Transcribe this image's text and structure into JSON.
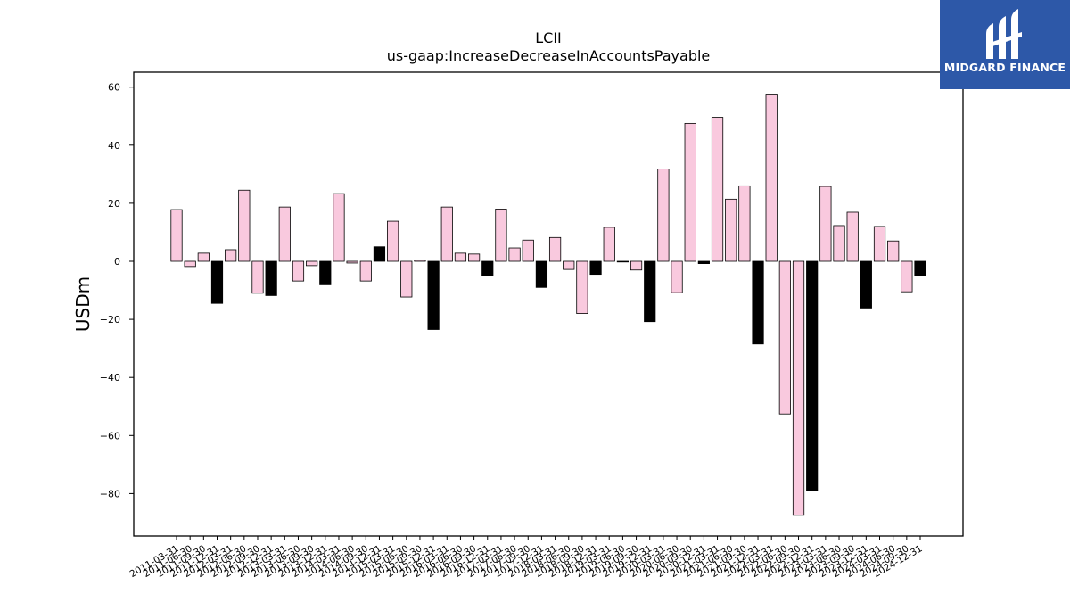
{
  "logo": {
    "text": "MIDGARD FINANCE"
  },
  "chart_data": {
    "type": "bar",
    "title": "LCII",
    "subtitle": "us-gaap:IncreaseDecreaseInAccountsPayable",
    "xlabel": "",
    "ylabel": "USDm",
    "ylim": [
      -95,
      65
    ],
    "yticks": [
      60,
      40,
      20,
      0,
      -20,
      -40,
      -60,
      -80
    ],
    "ytick_labels": [
      "60",
      "40",
      "20",
      "0",
      "−20",
      "−40",
      "−60",
      "−80"
    ],
    "grid": false,
    "colors": {
      "positive_quarter": "#f9c9de",
      "q4": "#000000",
      "edge": "#000000"
    },
    "categories": [
      "2011-03-31",
      "2011-06-30",
      "2011-09-30",
      "2011-12-31",
      "2012-03-31",
      "2012-06-30",
      "2012-09-30",
      "2012-12-31",
      "2013-03-31",
      "2013-06-30",
      "2013-09-30",
      "2013-12-31",
      "2014-03-31",
      "2014-06-30",
      "2014-09-30",
      "2014-12-31",
      "2015-03-31",
      "2015-06-30",
      "2015-09-30",
      "2015-12-31",
      "2016-03-31",
      "2016-06-30",
      "2016-09-30",
      "2016-12-31",
      "2017-03-31",
      "2017-06-30",
      "2017-09-30",
      "2017-12-31",
      "2018-03-31",
      "2018-06-30",
      "2018-09-30",
      "2018-12-31",
      "2019-03-31",
      "2019-06-30",
      "2019-09-30",
      "2019-12-31",
      "2020-03-31",
      "2020-06-30",
      "2020-09-30",
      "2020-12-31",
      "2021-03-31",
      "2021-06-30",
      "2021-09-30",
      "2021-12-31",
      "2022-03-31",
      "2022-06-30",
      "2022-09-30",
      "2022-12-31",
      "2023-03-31",
      "2023-06-30",
      "2023-09-30",
      "2023-12-31",
      "2024-03-31",
      "2024-06-30",
      "2024-09-30",
      "2024-12-31"
    ],
    "values": [
      17.8,
      -1.8,
      2.8,
      -14.5,
      4.0,
      24.5,
      -11.0,
      -11.8,
      18.7,
      -6.8,
      -1.5,
      -7.8,
      23.3,
      -0.6,
      -6.8,
      5.0,
      13.8,
      -12.3,
      0.4,
      -23.5,
      18.7,
      2.8,
      2.5,
      -5.0,
      18.0,
      4.6,
      7.3,
      -9.0,
      8.2,
      -2.8,
      -18.0,
      -4.5,
      11.7,
      -0.2,
      -3.0,
      -20.8,
      31.8,
      -10.8,
      47.5,
      -0.8,
      49.6,
      21.4,
      26.0,
      -28.5,
      57.6,
      -52.6,
      -87.5,
      -79.0,
      25.8,
      12.3,
      16.9,
      -16.1,
      12.0,
      7.0,
      -10.5,
      -5.0
    ]
  }
}
